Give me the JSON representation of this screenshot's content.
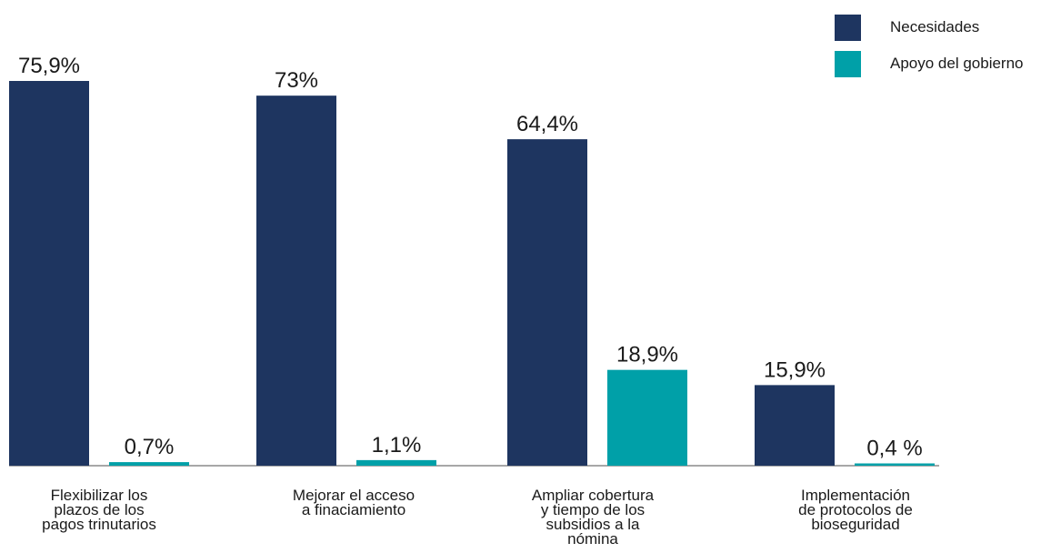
{
  "chart_data": {
    "type": "bar",
    "categories": [
      [
        "Flexibilizar los",
        "plazos de los",
        "pagos trinutarios"
      ],
      [
        "Mejorar el acceso",
        "a finaciamiento"
      ],
      [
        "Ampliar cobertura",
        "y tiempo de los",
        "subsidios a la",
        "nómina"
      ],
      [
        "Implementación",
        "de protocolos de",
        "bioseguridad"
      ]
    ],
    "series": [
      {
        "name": "Necesidades",
        "color": "#1e3560",
        "values": [
          75.9,
          73,
          64.4,
          15.9
        ],
        "labels": [
          "75,9%",
          "73%",
          "64,4%",
          "15,9%"
        ]
      },
      {
        "name": "Apoyo del gobierno",
        "color": "#00a0a8",
        "values": [
          0.7,
          1.1,
          18.9,
          0.4
        ],
        "labels": [
          "0,7%",
          "1,1%",
          "18,9%",
          "0,4 %"
        ]
      }
    ],
    "ylim": [
      0,
      80
    ],
    "grid": false,
    "legend_position": "top-right"
  }
}
